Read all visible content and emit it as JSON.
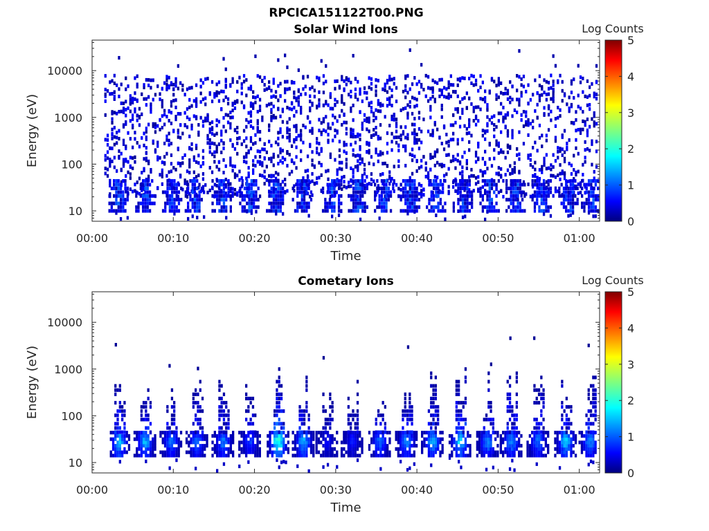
{
  "figure_title": "RPCICA151122T00.PNG",
  "colors": {
    "low": "#00007f",
    "high": "#7f0000",
    "colormap": "jet"
  },
  "chart_data": [
    {
      "type": "heatmap",
      "title": "Solar Wind Ions",
      "xlabel": "Time",
      "ylabel": "Energy (eV)",
      "y_scale": "log",
      "ylim": [
        6,
        45000
      ],
      "xlim_minutes": [
        0,
        62.5
      ],
      "x_tick_labels": [
        "00:00",
        "00:10",
        "00:20",
        "00:30",
        "00:40",
        "00:50",
        "01:00"
      ],
      "x_tick_minutes": [
        0,
        10,
        20,
        30,
        40,
        50,
        60
      ],
      "y_tick_labels": [
        "10",
        "100",
        "1000",
        "10000"
      ],
      "y_tick_values": [
        10,
        100,
        1000,
        10000
      ],
      "colorbar": {
        "label": "Log Counts",
        "range": [
          0,
          5
        ],
        "ticks": [
          "0",
          "1",
          "2",
          "3",
          "4",
          "5"
        ]
      },
      "data_extent_minutes": [
        1.5,
        62.3
      ],
      "burst_minutes": [
        3.2,
        6.5,
        9.8,
        12.6,
        15.9,
        19.3,
        22.6,
        25.8,
        29.5,
        32.7,
        35.9,
        39.1,
        42.3,
        45.6,
        48.9,
        52.1,
        55.3,
        58.6,
        61.4
      ],
      "description": "Sparse low-count (log counts 0-1) detections scattered across 10-30000 eV; denser band at ~15-40 eV during periodic bursts"
    },
    {
      "type": "heatmap",
      "title": "Cometary Ions",
      "xlabel": "Time",
      "ylabel": "Energy (eV)",
      "y_scale": "log",
      "ylim": [
        6,
        45000
      ],
      "xlim_minutes": [
        0,
        62.5
      ],
      "x_tick_labels": [
        "00:00",
        "00:10",
        "00:20",
        "00:30",
        "00:40",
        "00:50",
        "01:00"
      ],
      "x_tick_minutes": [
        0,
        10,
        20,
        30,
        40,
        50,
        60
      ],
      "y_tick_labels": [
        "10",
        "100",
        "1000",
        "10000"
      ],
      "y_tick_values": [
        10,
        100,
        1000,
        10000
      ],
      "colorbar": {
        "label": "Log Counts",
        "range": [
          0,
          5
        ],
        "ticks": [
          "0",
          "1",
          "2",
          "3",
          "4",
          "5"
        ]
      },
      "data_extent_minutes": [
        2.0,
        62.0
      ],
      "burst_minutes": [
        3.2,
        6.4,
        9.6,
        12.8,
        16.0,
        19.3,
        22.8,
        25.9,
        28.8,
        31.9,
        35.3,
        38.6,
        41.8,
        45.2,
        48.6,
        51.5,
        54.8,
        58.2,
        61.2
      ],
      "burst_peak_log_counts": [
        1.7,
        1.6,
        1.2,
        1.2,
        1.3,
        1.0,
        2.3,
        1.6,
        0.6,
        0.7,
        1.2,
        1.4,
        1.6,
        1.8,
        1.4,
        1.4,
        1.3,
        1.8,
        1.4
      ],
      "description": "Periodic bursts roughly every 3.2 minutes, strongest at ~20-40 eV (log counts up to ~2.3), tails extending to a few keV"
    }
  ]
}
